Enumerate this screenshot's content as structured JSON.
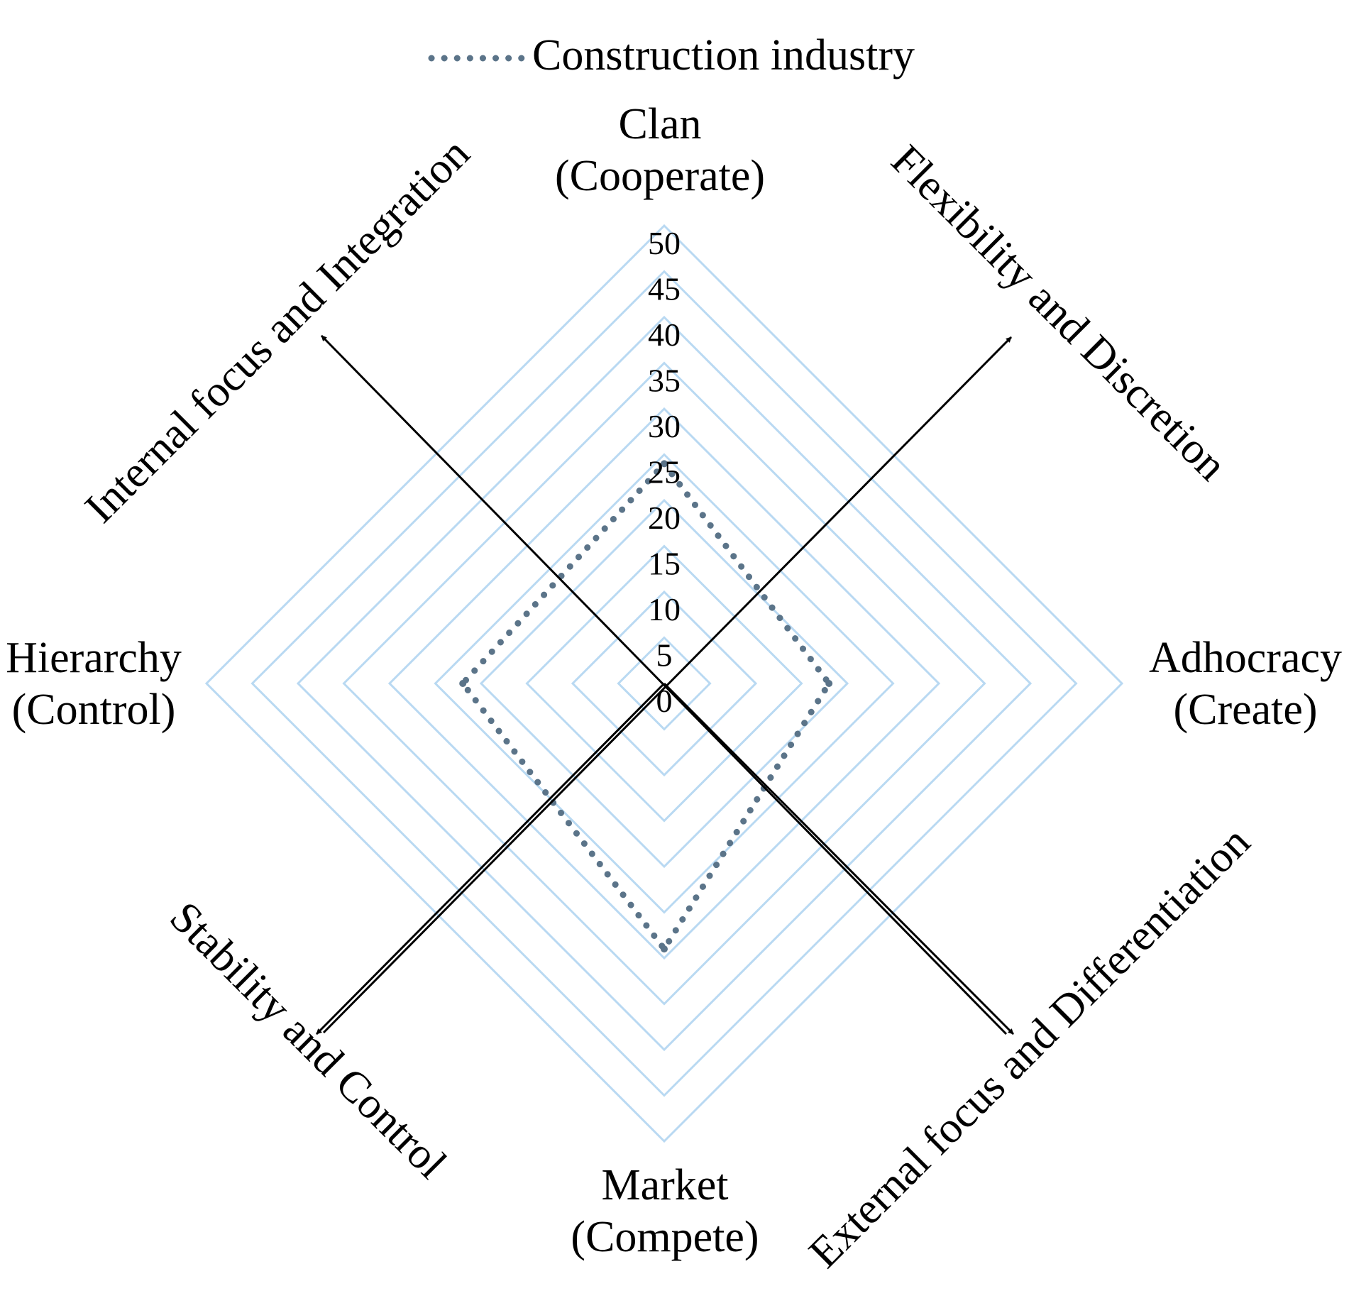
{
  "chart_data": {
    "type": "radar",
    "categories": [
      {
        "name": "Clan",
        "sub": "(Cooperate)"
      },
      {
        "name": "Adhocracy",
        "sub": "(Create)"
      },
      {
        "name": "Market",
        "sub": "(Compete)"
      },
      {
        "name": "Hierarchy",
        "sub": "(Control)"
      }
    ],
    "series": [
      {
        "name": "Construction industry",
        "values": [
          24,
          18,
          29,
          22
        ],
        "color": "#5b7489"
      }
    ],
    "r_range": [
      0,
      50
    ],
    "ticks": [
      "0",
      "5",
      "10",
      "15",
      "20",
      "25",
      "30",
      "35",
      "40",
      "45",
      "50"
    ],
    "grid_color": "#b9d9f2",
    "legend_position": "top",
    "dimensions": [
      "Internal focus and Integration",
      "Flexibility and Discretion",
      "Stability and Control",
      "External focus and Differentiation"
    ]
  }
}
